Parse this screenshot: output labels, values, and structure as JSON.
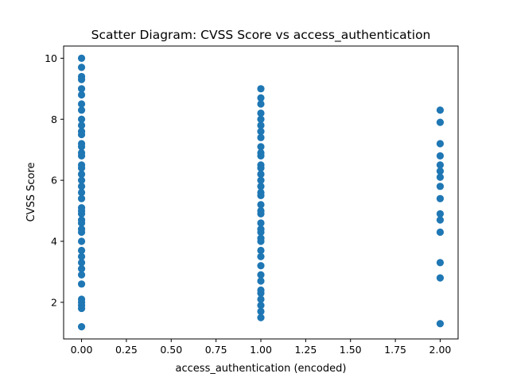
{
  "chart_data": {
    "type": "scatter",
    "title": "Scatter Diagram: CVSS Score vs access_authentication",
    "xlabel": "access_authentication (encoded)",
    "ylabel": "CVSS Score",
    "xlim": [
      -0.1,
      2.1
    ],
    "ylim": [
      0.8,
      10.4
    ],
    "xticks": [
      0.0,
      0.25,
      0.5,
      0.75,
      1.0,
      1.25,
      1.5,
      1.75,
      2.0
    ],
    "xtick_labels": [
      "0.00",
      "0.25",
      "0.50",
      "0.75",
      "1.00",
      "1.25",
      "1.50",
      "1.75",
      "2.00"
    ],
    "yticks": [
      2,
      4,
      6,
      8,
      10
    ],
    "ytick_labels": [
      "2",
      "4",
      "6",
      "8",
      "10"
    ],
    "grid": false,
    "marker_color": "#1f77b4",
    "series": [
      {
        "points": [
          {
            "x": 0,
            "y": 10.0
          },
          {
            "x": 0,
            "y": 9.7
          },
          {
            "x": 0,
            "y": 9.4
          },
          {
            "x": 0,
            "y": 9.3
          },
          {
            "x": 0,
            "y": 9.0
          },
          {
            "x": 0,
            "y": 8.8
          },
          {
            "x": 0,
            "y": 8.5
          },
          {
            "x": 0,
            "y": 8.3
          },
          {
            "x": 0,
            "y": 8.0
          },
          {
            "x": 0,
            "y": 7.8
          },
          {
            "x": 0,
            "y": 7.6
          },
          {
            "x": 0,
            "y": 7.5
          },
          {
            "x": 0,
            "y": 7.2
          },
          {
            "x": 0,
            "y": 7.1
          },
          {
            "x": 0,
            "y": 6.9
          },
          {
            "x": 0,
            "y": 6.8
          },
          {
            "x": 0,
            "y": 6.5
          },
          {
            "x": 0,
            "y": 6.4
          },
          {
            "x": 0,
            "y": 6.2
          },
          {
            "x": 0,
            "y": 6.0
          },
          {
            "x": 0,
            "y": 5.8
          },
          {
            "x": 0,
            "y": 5.6
          },
          {
            "x": 0,
            "y": 5.4
          },
          {
            "x": 0,
            "y": 5.1
          },
          {
            "x": 0,
            "y": 5.0
          },
          {
            "x": 0,
            "y": 4.9
          },
          {
            "x": 0,
            "y": 4.7
          },
          {
            "x": 0,
            "y": 4.6
          },
          {
            "x": 0,
            "y": 4.4
          },
          {
            "x": 0,
            "y": 4.3
          },
          {
            "x": 0,
            "y": 4.0
          },
          {
            "x": 0,
            "y": 3.7
          },
          {
            "x": 0,
            "y": 3.5
          },
          {
            "x": 0,
            "y": 3.3
          },
          {
            "x": 0,
            "y": 3.1
          },
          {
            "x": 0,
            "y": 2.9
          },
          {
            "x": 0,
            "y": 2.6
          },
          {
            "x": 0,
            "y": 2.1
          },
          {
            "x": 0,
            "y": 2.0
          },
          {
            "x": 0,
            "y": 1.9
          },
          {
            "x": 0,
            "y": 1.8
          },
          {
            "x": 0,
            "y": 1.2
          },
          {
            "x": 1,
            "y": 9.0
          },
          {
            "x": 1,
            "y": 8.7
          },
          {
            "x": 1,
            "y": 8.5
          },
          {
            "x": 1,
            "y": 8.2
          },
          {
            "x": 1,
            "y": 8.0
          },
          {
            "x": 1,
            "y": 7.8
          },
          {
            "x": 1,
            "y": 7.6
          },
          {
            "x": 1,
            "y": 7.4
          },
          {
            "x": 1,
            "y": 7.1
          },
          {
            "x": 1,
            "y": 6.9
          },
          {
            "x": 1,
            "y": 6.8
          },
          {
            "x": 1,
            "y": 6.5
          },
          {
            "x": 1,
            "y": 6.4
          },
          {
            "x": 1,
            "y": 6.2
          },
          {
            "x": 1,
            "y": 6.0
          },
          {
            "x": 1,
            "y": 5.8
          },
          {
            "x": 1,
            "y": 5.6
          },
          {
            "x": 1,
            "y": 5.5
          },
          {
            "x": 1,
            "y": 5.2
          },
          {
            "x": 1,
            "y": 5.0
          },
          {
            "x": 1,
            "y": 4.9
          },
          {
            "x": 1,
            "y": 4.6
          },
          {
            "x": 1,
            "y": 4.4
          },
          {
            "x": 1,
            "y": 4.3
          },
          {
            "x": 1,
            "y": 4.1
          },
          {
            "x": 1,
            "y": 4.0
          },
          {
            "x": 1,
            "y": 3.7
          },
          {
            "x": 1,
            "y": 3.5
          },
          {
            "x": 1,
            "y": 3.2
          },
          {
            "x": 1,
            "y": 2.9
          },
          {
            "x": 1,
            "y": 2.7
          },
          {
            "x": 1,
            "y": 2.4
          },
          {
            "x": 1,
            "y": 2.3
          },
          {
            "x": 1,
            "y": 2.1
          },
          {
            "x": 1,
            "y": 1.9
          },
          {
            "x": 1,
            "y": 1.7
          },
          {
            "x": 1,
            "y": 1.5
          },
          {
            "x": 2,
            "y": 8.3
          },
          {
            "x": 2,
            "y": 7.9
          },
          {
            "x": 2,
            "y": 7.2
          },
          {
            "x": 2,
            "y": 6.8
          },
          {
            "x": 2,
            "y": 6.5
          },
          {
            "x": 2,
            "y": 6.3
          },
          {
            "x": 2,
            "y": 6.1
          },
          {
            "x": 2,
            "y": 5.8
          },
          {
            "x": 2,
            "y": 5.4
          },
          {
            "x": 2,
            "y": 4.9
          },
          {
            "x": 2,
            "y": 4.7
          },
          {
            "x": 2,
            "y": 4.3
          },
          {
            "x": 2,
            "y": 3.3
          },
          {
            "x": 2,
            "y": 2.8
          },
          {
            "x": 2,
            "y": 1.3
          }
        ]
      }
    ]
  }
}
